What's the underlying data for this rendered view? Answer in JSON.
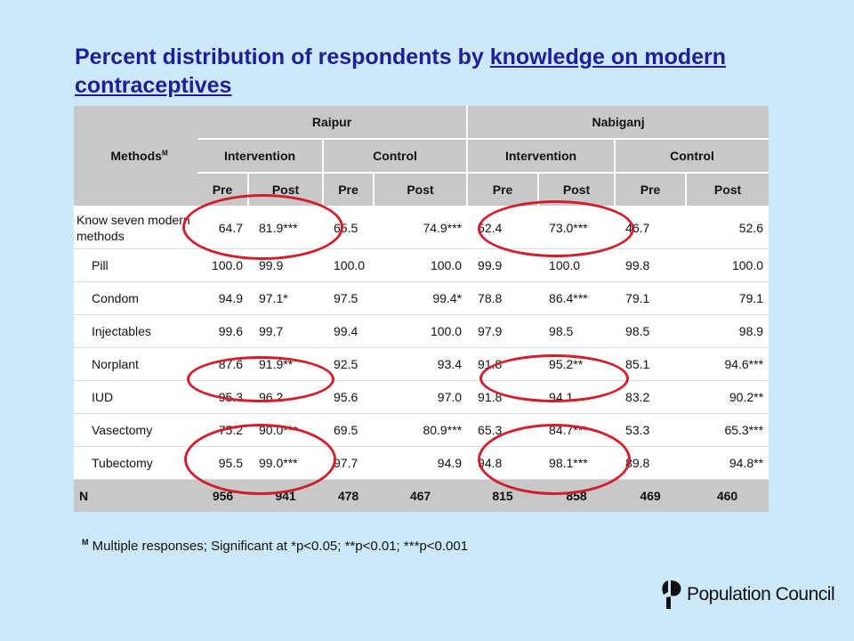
{
  "title": {
    "prefix": "Percent distribution of respondents by ",
    "underlined": "knowledge on modern contraceptives"
  },
  "table": {
    "methods_label": "Methods",
    "methods_sup": "M",
    "regions": [
      "Raipur",
      "Nabiganj"
    ],
    "groups": [
      "Intervention",
      "Control",
      "Intervention",
      "Control"
    ],
    "phases": [
      "Pre",
      "Post",
      "Pre",
      "Post",
      "Pre",
      "Post",
      "Pre",
      "Post"
    ],
    "rows": [
      {
        "label": "Know seven modern methods",
        "values": [
          "64.7",
          "81.9***",
          "65.5",
          "74.9***",
          "52.4",
          "73.0***",
          "46.7",
          "52.6"
        ]
      },
      {
        "label": "Pill",
        "values": [
          "100.0",
          "99.9",
          "100.0",
          "100.0",
          "99.9",
          "100.0",
          "99.8",
          "100.0"
        ]
      },
      {
        "label": "Condom",
        "values": [
          "94.9",
          "97.1*",
          "97.5",
          "99.4*",
          "78.8",
          "86.4***",
          "79.1",
          "79.1"
        ]
      },
      {
        "label": "Injectables",
        "values": [
          "99.6",
          "99.7",
          "99.4",
          "100.0",
          "97.9",
          "98.5",
          "98.5",
          "98.9"
        ]
      },
      {
        "label": "Norplant",
        "values": [
          "87.6",
          "91.9**",
          "92.5",
          "93.4",
          "91.8",
          "95.2**",
          "85.1",
          "94.6***"
        ]
      },
      {
        "label": "IUD",
        "values": [
          "95.3",
          "96.2",
          "95.6",
          "97.0",
          "91.8",
          "94.1",
          "83.2",
          "90.2**"
        ]
      },
      {
        "label": "Vasectomy",
        "values": [
          "75.2",
          "90.0***",
          "69.5",
          "80.9***",
          "65.3",
          "84.7***",
          "53.3",
          "65.3***"
        ]
      },
      {
        "label": "Tubectomy",
        "values": [
          "95.5",
          "99.0***",
          "97.7",
          "94.9",
          "94.8",
          "98.1***",
          "89.8",
          "94.8**"
        ]
      }
    ],
    "n_row": {
      "label": "N",
      "values": [
        "956",
        "941",
        "478",
        "467",
        "815",
        "858",
        "469",
        "460"
      ]
    }
  },
  "footnote": {
    "sup": "M",
    "text": " Multiple responses; Significant at *p<0.05; **p<0.01; ***p<0.001"
  },
  "logo": {
    "text": "Population Council"
  },
  "colors": {
    "background": "#cce9fb",
    "title": "#1e1e9a",
    "header_fill": "#c8c8c8",
    "highlight_circle": "#d21e2b"
  }
}
